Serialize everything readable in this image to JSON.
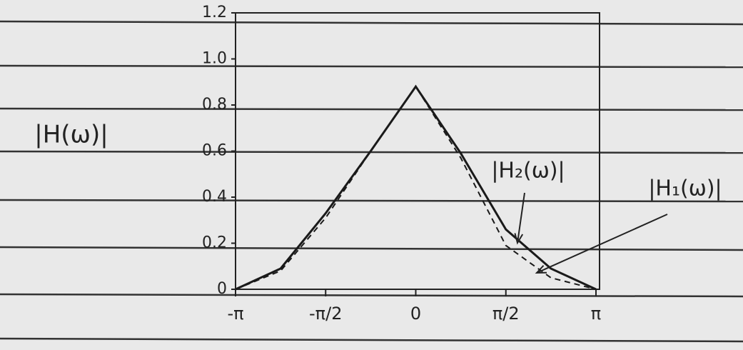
{
  "chart_data": {
    "type": "line",
    "y_label": "|H(ω)|",
    "x": [
      -3.1416,
      -2.3562,
      -1.5708,
      -0.7854,
      0,
      0.7854,
      1.5708,
      2.3562,
      3.1416
    ],
    "series": [
      {
        "name": "|H₂(ω)|",
        "color": "#1a1a1a",
        "dashed": false,
        "values": [
          0,
          0.09,
          0.33,
          0.6,
          0.88,
          0.59,
          0.26,
          0.09,
          0
        ]
      },
      {
        "name": "|H₁(ω)|",
        "color": "#1a1a1a",
        "dashed": true,
        "values": [
          0,
          0.08,
          0.31,
          0.6,
          0.88,
          0.57,
          0.19,
          0.05,
          0
        ]
      }
    ],
    "xlim": [
      -3.1416,
      3.1416
    ],
    "xticks": [
      {
        "value": -3.1416,
        "label": "-π"
      },
      {
        "value": -1.5708,
        "label": "-π/2"
      },
      {
        "value": 0,
        "label": "0"
      },
      {
        "value": 1.5708,
        "label": "π/2"
      },
      {
        "value": 3.1416,
        "label": "π"
      }
    ],
    "ylim": [
      0,
      1.2
    ],
    "yticks": [
      0,
      0.2,
      0.4,
      0.6,
      0.8,
      {
        "value": 1.0,
        "label": "1.0"
      },
      1.2
    ]
  }
}
